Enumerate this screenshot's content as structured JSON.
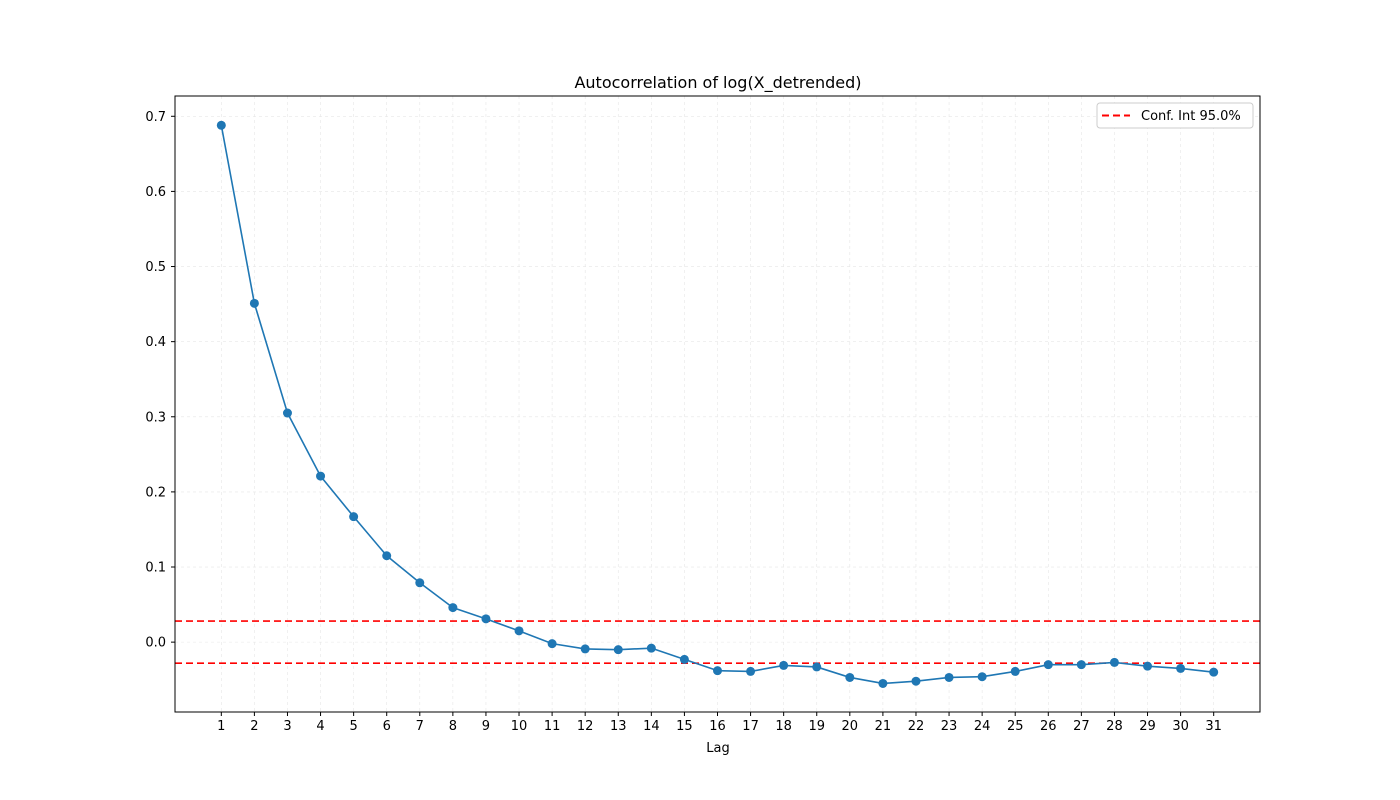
{
  "chart_data": {
    "type": "line",
    "title": "Autocorrelation of log(X_detrended)",
    "xlabel": "Lag",
    "ylabel": "",
    "x": [
      1,
      2,
      3,
      4,
      5,
      6,
      7,
      8,
      9,
      10,
      11,
      12,
      13,
      14,
      15,
      16,
      17,
      18,
      19,
      20,
      21,
      22,
      23,
      24,
      25,
      26,
      27,
      28,
      29,
      30,
      31
    ],
    "xlim": [
      -0.4,
      32.4
    ],
    "ylim": [
      -0.093,
      0.727
    ],
    "yticks": [
      0.0,
      0.1,
      0.2,
      0.3,
      0.4,
      0.5,
      0.6,
      0.7
    ],
    "ytick_labels": [
      "0.0",
      "0.1",
      "0.2",
      "0.3",
      "0.4",
      "0.5",
      "0.6",
      "0.7"
    ],
    "xtick_labels": [
      "1",
      "2",
      "3",
      "4",
      "5",
      "6",
      "7",
      "8",
      "9",
      "10",
      "11",
      "12",
      "13",
      "14",
      "15",
      "16",
      "17",
      "18",
      "19",
      "20",
      "21",
      "22",
      "23",
      "24",
      "25",
      "26",
      "27",
      "28",
      "29",
      "30",
      "31"
    ],
    "grid": true,
    "legend_position": "top-right",
    "series": [
      {
        "color": "#1f77b4",
        "marker": "circle",
        "values": [
          0.688,
          0.451,
          0.305,
          0.221,
          0.167,
          0.115,
          0.079,
          0.046,
          0.031,
          0.015,
          -0.002,
          -0.009,
          -0.01,
          -0.008,
          -0.023,
          -0.038,
          -0.039,
          -0.031,
          -0.033,
          -0.047,
          -0.055,
          -0.052,
          -0.047,
          -0.046,
          -0.039,
          -0.03,
          -0.03,
          -0.027,
          -0.032,
          -0.035,
          -0.04
        ]
      }
    ],
    "conf_int": {
      "label": "Conf. Int 95.0%",
      "upper": 0.028,
      "lower": -0.028,
      "color": "#ff0000",
      "style": "dashed"
    }
  }
}
